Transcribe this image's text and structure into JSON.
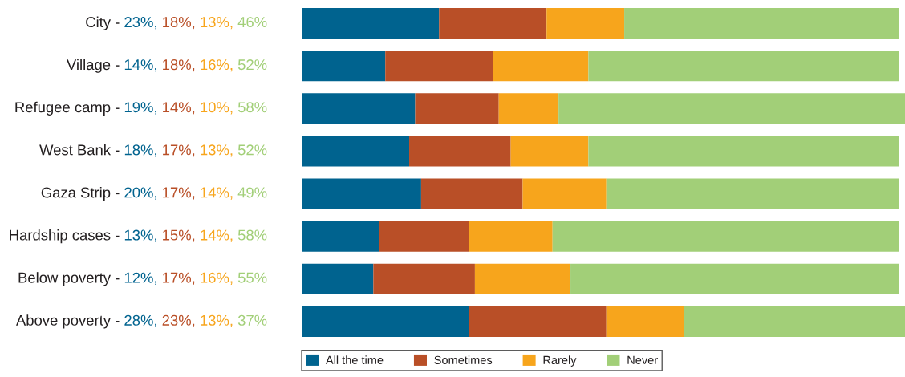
{
  "chart_data": {
    "type": "bar",
    "orientation": "horizontal",
    "stacked": true,
    "legend": "bottom",
    "tick_labels": "y",
    "categories": [
      "City -",
      "Village -",
      "Refugee camp -",
      "West Bank -",
      "Gaza Strip -",
      "Hardship cases -",
      "Below poverty -",
      "Above poverty -"
    ],
    "series": [
      {
        "name": "All the time",
        "color": "#00638f",
        "values": [
          23,
          14,
          19,
          18,
          20,
          13,
          12,
          28
        ],
        "value_labels": [
          "23%,",
          "14%,",
          "19%,",
          "18%,",
          "20%,",
          "13%,",
          "12%,",
          "28%,"
        ]
      },
      {
        "name": "Sometimes",
        "color": "#b94f27",
        "values": [
          18,
          18,
          14,
          17,
          17,
          15,
          17,
          23
        ],
        "value_labels": [
          "18%,",
          "18%,",
          "14%,",
          "17%,",
          "17%,",
          "15%,",
          "17%,",
          "23%,"
        ]
      },
      {
        "name": "Rarely",
        "color": "#f7a51c",
        "values": [
          13,
          16,
          10,
          13,
          14,
          14,
          16,
          13
        ],
        "value_labels": [
          "13%,",
          "16%,",
          "10%,",
          "13%,",
          "14%,",
          "14%,",
          "16%,",
          "13%,"
        ]
      },
      {
        "name": "Never",
        "color": "#a2cf78",
        "values": [
          46,
          52,
          58,
          52,
          49,
          58,
          55,
          37
        ],
        "value_labels": [
          "46%",
          "52%",
          "58%",
          "52%",
          "49%",
          "58%",
          "55%",
          "37%"
        ]
      }
    ]
  }
}
